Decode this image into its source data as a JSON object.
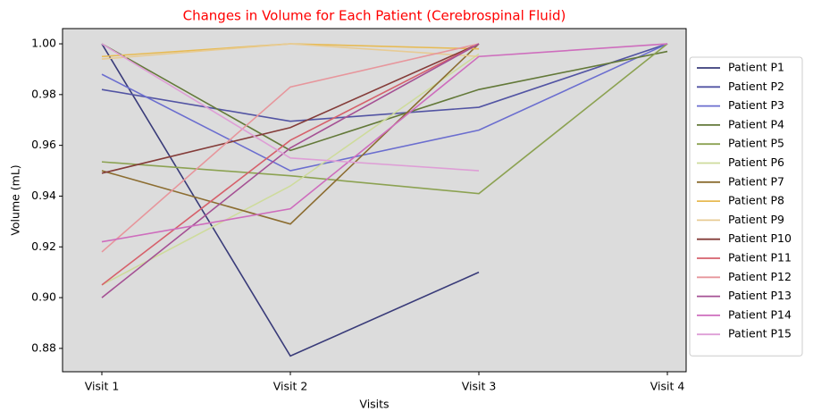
{
  "chart_data": {
    "type": "line",
    "title": "Changes in Volume for Each Patient (Cerebrospinal Fluid)",
    "title_color": "#ff0000",
    "xlabel": "Visits",
    "ylabel": "Volume (mL)",
    "categories": [
      "Visit 1",
      "Visit 2",
      "Visit 3",
      "Visit 4"
    ],
    "ylim": [
      0.8708,
      1.006
    ],
    "yticks": [
      0.88,
      {
        "value": 0.9,
        "label": "0.90"
      },
      0.92,
      0.94,
      0.96,
      0.98,
      {
        "value": 1.0,
        "label": "1.00"
      }
    ],
    "background": "#dcdcdc",
    "legend": "right",
    "series": [
      {
        "name": "Patient P1",
        "color": "#393b79",
        "values": [
          1.0,
          0.877,
          0.91,
          null
        ]
      },
      {
        "name": "Patient P2",
        "color": "#5254a3",
        "values": [
          0.982,
          0.9695,
          0.975,
          1.0
        ]
      },
      {
        "name": "Patient P3",
        "color": "#6b6ecf",
        "values": [
          0.988,
          0.95,
          0.966,
          1.0
        ]
      },
      {
        "name": "Patient P4",
        "color": "#637939",
        "values": [
          1.0,
          0.958,
          0.982,
          0.997
        ]
      },
      {
        "name": "Patient P5",
        "color": "#8ca252",
        "values": [
          0.9535,
          0.948,
          0.941,
          1.0
        ]
      },
      {
        "name": "Patient P6",
        "color": "#cedb9c",
        "values": [
          0.905,
          0.944,
          0.996,
          null
        ]
      },
      {
        "name": "Patient P7",
        "color": "#8c6d31",
        "values": [
          0.95,
          0.929,
          1.0,
          null
        ]
      },
      {
        "name": "Patient P8",
        "color": "#e7ba52",
        "values": [
          0.995,
          1.0,
          0.998,
          null
        ]
      },
      {
        "name": "Patient P9",
        "color": "#e7cb94",
        "values": [
          0.994,
          1.0,
          0.995,
          null
        ]
      },
      {
        "name": "Patient P10",
        "color": "#843c39",
        "values": [
          0.949,
          0.967,
          1.0,
          null
        ]
      },
      {
        "name": "Patient P11",
        "color": "#d6616b",
        "values": [
          0.905,
          0.962,
          1.0,
          null
        ]
      },
      {
        "name": "Patient P12",
        "color": "#e7969c",
        "values": [
          0.918,
          0.983,
          1.0,
          null
        ]
      },
      {
        "name": "Patient P13",
        "color": "#a55194",
        "values": [
          0.9,
          0.959,
          1.0,
          null
        ]
      },
      {
        "name": "Patient P14",
        "color": "#ce6dbd",
        "values": [
          0.922,
          0.935,
          0.995,
          1.0
        ]
      },
      {
        "name": "Patient P15",
        "color": "#de9ed6",
        "values": [
          1.0,
          0.955,
          0.95,
          null
        ]
      }
    ]
  }
}
